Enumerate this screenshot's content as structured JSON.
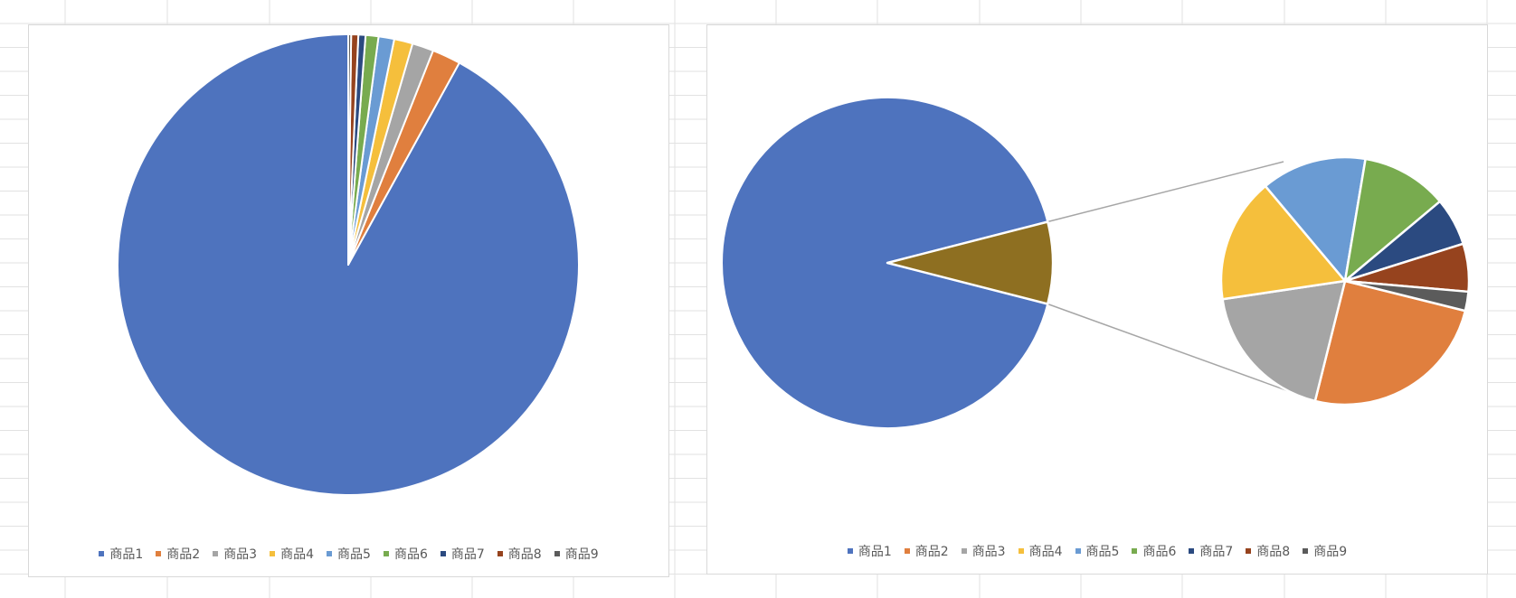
{
  "chart_data": [
    {
      "type": "pie",
      "categories": [
        "商品1",
        "商品2",
        "商品3",
        "商品4",
        "商品5",
        "商品6",
        "商品7",
        "商品8",
        "商品9"
      ],
      "values": [
        92,
        2,
        1.5,
        1.3,
        1.1,
        0.9,
        0.5,
        0.5,
        0.2
      ],
      "colors": [
        "#4e73be",
        "#e07f3e",
        "#a5a5a5",
        "#f5bf3c",
        "#6a9bd3",
        "#78ab4f",
        "#2b4a80",
        "#96431e",
        "#5b5b5b"
      ],
      "start_angle": 0,
      "direction": "counterclockwise",
      "legend_position": "bottom"
    },
    {
      "type": "pie-of-pie",
      "categories": [
        "商品1",
        "商品2",
        "商品3",
        "商品4",
        "商品5",
        "商品6",
        "商品7",
        "商品8",
        "商品9"
      ],
      "values": [
        92,
        2,
        1.5,
        1.3,
        1.1,
        0.9,
        0.5,
        0.5,
        0.2
      ],
      "colors": [
        "#4e73be",
        "#e07f3e",
        "#a5a5a5",
        "#f5bf3c",
        "#6a9bd3",
        "#78ab4f",
        "#2b4a80",
        "#96431e",
        "#5b5b5b"
      ],
      "secondary_categories": [
        "商品2",
        "商品3",
        "商品4",
        "商品5",
        "商品6",
        "商品7",
        "商品8",
        "商品9"
      ],
      "other_color": "#8e6f21",
      "connector_color": "#a6a6a6",
      "legend_position": "bottom"
    }
  ]
}
